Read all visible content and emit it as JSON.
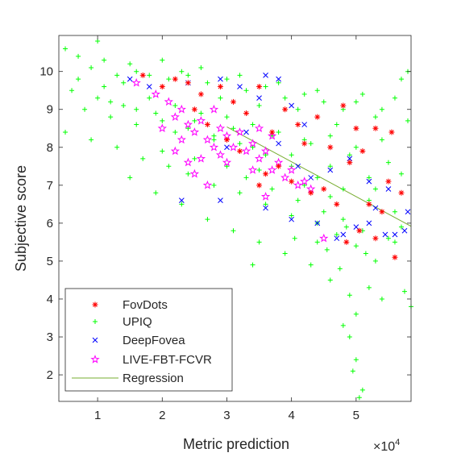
{
  "chart_data": {
    "type": "scatter",
    "xlabel": "Metric prediction",
    "ylabel": "Subjective score",
    "x_exponent_label": "×10",
    "x_exponent_power": "4",
    "x_scale": 10000,
    "xlim": [
      0.4,
      5.85
    ],
    "ylim": [
      1.3,
      10.95
    ],
    "x_ticks": [
      1,
      2,
      3,
      4,
      5
    ],
    "y_ticks": [
      2,
      3,
      4,
      5,
      6,
      7,
      8,
      9,
      10
    ],
    "grid": false,
    "legend_position": "bottom-left",
    "series": [
      {
        "name": "FovDots",
        "marker": "asterisk",
        "color": "#ff0000",
        "points": [
          [
            1.7,
            9.9
          ],
          [
            2.0,
            9.6
          ],
          [
            2.2,
            9.8
          ],
          [
            2.4,
            9.7
          ],
          [
            2.6,
            9.4
          ],
          [
            2.9,
            9.6
          ],
          [
            3.1,
            9.2
          ],
          [
            3.3,
            8.9
          ],
          [
            3.5,
            9.6
          ],
          [
            3.7,
            8.4
          ],
          [
            3.9,
            9.0
          ],
          [
            4.1,
            8.6
          ],
          [
            4.2,
            8.1
          ],
          [
            4.4,
            8.8
          ],
          [
            4.6,
            8.0
          ],
          [
            4.8,
            9.1
          ],
          [
            5.0,
            8.5
          ],
          [
            5.3,
            8.5
          ],
          [
            5.55,
            8.4
          ],
          [
            2.5,
            9.0
          ],
          [
            2.7,
            8.6
          ],
          [
            3.0,
            8.2
          ],
          [
            3.2,
            7.9
          ],
          [
            3.6,
            7.3
          ],
          [
            3.8,
            7.5
          ],
          [
            4.0,
            7.1
          ],
          [
            4.3,
            6.8
          ],
          [
            4.5,
            6.9
          ],
          [
            4.7,
            6.5
          ],
          [
            4.9,
            7.6
          ],
          [
            5.1,
            7.9
          ],
          [
            5.2,
            6.5
          ],
          [
            5.4,
            6.3
          ],
          [
            5.5,
            7.1
          ],
          [
            5.7,
            6.8
          ],
          [
            5.6,
            5.1
          ],
          [
            4.85,
            5.5
          ],
          [
            5.05,
            5.8
          ],
          [
            5.3,
            5.6
          ],
          [
            3.5,
            7.0
          ]
        ]
      },
      {
        "name": "UPIQ",
        "marker": "plus",
        "color": "#00ff00",
        "points": [
          [
            0.5,
            10.6
          ],
          [
            0.7,
            10.4
          ],
          [
            0.9,
            10.1
          ],
          [
            1.1,
            10.3
          ],
          [
            1.3,
            9.9
          ],
          [
            1.5,
            10.2
          ],
          [
            1.8,
            9.9
          ],
          [
            2.1,
            9.8
          ],
          [
            2.4,
            9.9
          ],
          [
            2.7,
            9.7
          ],
          [
            3.0,
            9.8
          ],
          [
            3.3,
            9.5
          ],
          [
            3.6,
            9.6
          ],
          [
            3.9,
            9.3
          ],
          [
            4.2,
            9.4
          ],
          [
            4.5,
            9.2
          ],
          [
            4.8,
            9.0
          ],
          [
            5.1,
            9.4
          ],
          [
            5.4,
            9.0
          ],
          [
            5.7,
            9.8
          ],
          [
            0.6,
            9.5
          ],
          [
            0.8,
            9.0
          ],
          [
            1.0,
            9.3
          ],
          [
            1.2,
            8.8
          ],
          [
            1.4,
            9.1
          ],
          [
            1.6,
            8.6
          ],
          [
            1.9,
            8.9
          ],
          [
            2.2,
            8.4
          ],
          [
            2.5,
            8.7
          ],
          [
            2.8,
            8.2
          ],
          [
            3.1,
            8.5
          ],
          [
            3.4,
            8.0
          ],
          [
            3.7,
            8.3
          ],
          [
            4.0,
            7.8
          ],
          [
            4.3,
            8.1
          ],
          [
            4.6,
            7.5
          ],
          [
            4.9,
            7.8
          ],
          [
            5.2,
            7.2
          ],
          [
            5.5,
            7.6
          ],
          [
            5.8,
            8.7
          ],
          [
            0.5,
            8.4
          ],
          [
            0.9,
            8.2
          ],
          [
            1.3,
            8.0
          ],
          [
            1.7,
            7.7
          ],
          [
            2.1,
            7.5
          ],
          [
            2.4,
            7.3
          ],
          [
            2.8,
            7.0
          ],
          [
            3.2,
            6.8
          ],
          [
            3.6,
            6.5
          ],
          [
            4.0,
            6.2
          ],
          [
            4.4,
            6.0
          ],
          [
            4.7,
            5.7
          ],
          [
            5.0,
            5.4
          ],
          [
            5.3,
            5.0
          ],
          [
            5.6,
            5.5
          ],
          [
            1.5,
            7.2
          ],
          [
            1.9,
            6.8
          ],
          [
            2.3,
            6.5
          ],
          [
            2.7,
            6.1
          ],
          [
            3.1,
            5.8
          ],
          [
            3.5,
            5.5
          ],
          [
            3.9,
            5.2
          ],
          [
            4.3,
            4.9
          ],
          [
            4.6,
            4.5
          ],
          [
            4.9,
            4.1
          ],
          [
            5.0,
            3.6
          ],
          [
            4.9,
            3.0
          ],
          [
            5.0,
            2.4
          ],
          [
            4.95,
            2.1
          ],
          [
            5.05,
            1.4
          ],
          [
            5.1,
            1.6
          ],
          [
            4.8,
            3.3
          ],
          [
            5.2,
            4.3
          ],
          [
            5.4,
            4.0
          ],
          [
            5.75,
            4.2
          ],
          [
            5.85,
            3.8
          ],
          [
            5.7,
            5.9
          ],
          [
            1.0,
            10.8
          ],
          [
            1.6,
            10.0
          ],
          [
            2.0,
            10.3
          ],
          [
            2.3,
            10.0
          ],
          [
            2.6,
            10.1
          ],
          [
            2.9,
            9.3
          ],
          [
            3.2,
            9.9
          ],
          [
            3.5,
            9.1
          ],
          [
            3.8,
            9.7
          ],
          [
            4.1,
            9.0
          ],
          [
            4.4,
            9.5
          ],
          [
            4.7,
            8.6
          ],
          [
            5.0,
            9.2
          ],
          [
            5.3,
            8.8
          ],
          [
            5.6,
            9.3
          ],
          [
            5.8,
            10.0
          ],
          [
            0.7,
            9.8
          ],
          [
            1.1,
            9.6
          ],
          [
            1.4,
            9.7
          ],
          [
            1.8,
            9.3
          ],
          [
            2.2,
            9.1
          ],
          [
            2.6,
            8.9
          ],
          [
            3.0,
            8.8
          ],
          [
            3.4,
            8.6
          ],
          [
            3.8,
            8.4
          ],
          [
            4.2,
            8.2
          ],
          [
            4.6,
            8.3
          ],
          [
            5.0,
            8.0
          ],
          [
            5.4,
            8.2
          ],
          [
            1.2,
            9.2
          ],
          [
            1.6,
            9.0
          ],
          [
            2.0,
            8.7
          ],
          [
            2.4,
            8.5
          ],
          [
            2.8,
            8.3
          ],
          [
            3.2,
            8.1
          ],
          [
            3.6,
            7.8
          ],
          [
            4.0,
            7.5
          ],
          [
            4.4,
            7.2
          ],
          [
            4.8,
            6.9
          ],
          [
            5.2,
            6.6
          ],
          [
            5.6,
            6.3
          ],
          [
            3.0,
            7.5
          ],
          [
            3.3,
            7.2
          ],
          [
            3.7,
            6.9
          ],
          [
            4.1,
            6.6
          ],
          [
            4.5,
            6.3
          ],
          [
            4.8,
            6.1
          ],
          [
            5.1,
            5.8
          ],
          [
            5.5,
            5.6
          ],
          [
            2.0,
            7.9
          ],
          [
            2.5,
            7.7
          ],
          [
            3.5,
            7.4
          ],
          [
            4.2,
            7.0
          ],
          [
            4.6,
            6.7
          ],
          [
            5.3,
            6.9
          ],
          [
            5.7,
            7.3
          ],
          [
            4.75,
            4.8
          ],
          [
            5.15,
            5.2
          ],
          [
            4.85,
            5.9
          ],
          [
            4.55,
            5.3
          ],
          [
            3.4,
            4.9
          ],
          [
            4.05,
            5.6
          ],
          [
            4.4,
            5.5
          ]
        ]
      },
      {
        "name": "DeepFovea",
        "marker": "x",
        "color": "#0000ff",
        "points": [
          [
            1.5,
            9.8
          ],
          [
            1.8,
            9.6
          ],
          [
            2.4,
            9.7
          ],
          [
            2.9,
            9.8
          ],
          [
            3.2,
            9.6
          ],
          [
            3.6,
            9.9
          ],
          [
            3.8,
            9.8
          ],
          [
            3.5,
            9.3
          ],
          [
            4.0,
            9.1
          ],
          [
            4.2,
            8.6
          ],
          [
            3.3,
            8.4
          ],
          [
            3.0,
            8.0
          ],
          [
            3.8,
            8.1
          ],
          [
            4.1,
            7.5
          ],
          [
            4.3,
            7.2
          ],
          [
            4.6,
            7.4
          ],
          [
            4.9,
            7.7
          ],
          [
            5.2,
            7.1
          ],
          [
            5.5,
            6.9
          ],
          [
            5.8,
            6.3
          ],
          [
            2.3,
            6.6
          ],
          [
            2.9,
            6.6
          ],
          [
            3.6,
            6.4
          ],
          [
            4.0,
            6.1
          ],
          [
            4.4,
            6.0
          ],
          [
            4.8,
            5.7
          ],
          [
            5.0,
            5.9
          ],
          [
            5.3,
            6.4
          ],
          [
            5.6,
            5.7
          ],
          [
            5.75,
            5.8
          ],
          [
            4.7,
            5.6
          ],
          [
            5.2,
            6.0
          ],
          [
            5.45,
            5.7
          ]
        ]
      },
      {
        "name": "LIVE-FBT-FCVR",
        "marker": "pentagram",
        "color": "#ff00ff",
        "points": [
          [
            1.6,
            9.7
          ],
          [
            1.9,
            9.4
          ],
          [
            2.1,
            9.2
          ],
          [
            2.2,
            8.8
          ],
          [
            2.3,
            9.0
          ],
          [
            2.4,
            8.6
          ],
          [
            2.5,
            8.4
          ],
          [
            2.6,
            8.7
          ],
          [
            2.7,
            8.2
          ],
          [
            2.8,
            9.0
          ],
          [
            2.9,
            8.5
          ],
          [
            3.0,
            8.3
          ],
          [
            3.1,
            8.0
          ],
          [
            3.2,
            8.4
          ],
          [
            3.3,
            7.9
          ],
          [
            3.4,
            8.1
          ],
          [
            3.5,
            7.7
          ],
          [
            3.6,
            7.9
          ],
          [
            3.7,
            7.4
          ],
          [
            3.8,
            7.6
          ],
          [
            3.9,
            7.2
          ],
          [
            4.0,
            7.4
          ],
          [
            4.1,
            7.0
          ],
          [
            4.2,
            7.1
          ],
          [
            4.3,
            6.9
          ],
          [
            2.0,
            8.5
          ],
          [
            2.2,
            7.9
          ],
          [
            2.4,
            7.6
          ],
          [
            2.5,
            7.3
          ],
          [
            2.6,
            7.7
          ],
          [
            2.7,
            7.0
          ],
          [
            2.3,
            8.2
          ],
          [
            2.8,
            8.0
          ],
          [
            3.0,
            7.6
          ],
          [
            3.5,
            8.5
          ],
          [
            3.7,
            8.3
          ],
          [
            4.5,
            5.6
          ],
          [
            3.4,
            7.4
          ],
          [
            2.9,
            7.8
          ],
          [
            3.6,
            6.7
          ]
        ]
      }
    ],
    "regression": {
      "name": "Regression",
      "color": "#77ac30",
      "slope": -0.92,
      "intercept": 11.3
    }
  }
}
